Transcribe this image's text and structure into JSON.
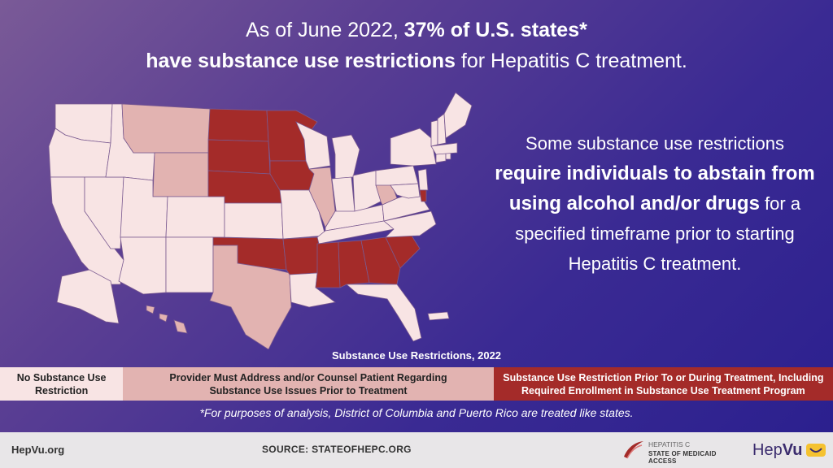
{
  "headline": {
    "line1_pre": "As of June 2022,",
    "line1_bold": "37% of U.S. states*",
    "line2_bold": "have substance use restrictions",
    "line2_post": "for Hepatitis C treatment."
  },
  "side_text": {
    "line1": "Some substance use restrictions",
    "bold": "require individuals to abstain from using alcohol and/or drugs",
    "post": "for a specified timeframe prior to starting Hepatitis C treatment."
  },
  "legend": {
    "title": "Substance Use Restrictions, 2022",
    "items": [
      {
        "label": "No Substance Use Restriction",
        "color": "#f8e4e4"
      },
      {
        "label": "Provider Must Address and/or Counsel Patient Regarding Substance Use Issues Prior to Treatment",
        "color": "#e2b3b1"
      },
      {
        "label": "Substance Use Restriction Prior To or During Treatment, Including Required Enrollment in Substance Use Treatment Program",
        "color": "#a42b29"
      }
    ]
  },
  "footnote": "*For purposes of analysis, District of Columbia and Puerto Rico are treated like states.",
  "footer": {
    "left": "HepVu.org",
    "source": "SOURCE: STATEOFHEPC.ORG",
    "logo1_line1": "HEPATITIS C",
    "logo1_line2": "STATE OF MEDICAID ACCESS",
    "logo2_a": "Hep",
    "logo2_b": "Vu"
  },
  "map": {
    "states": [
      {
        "name": "WA",
        "cat": 0
      },
      {
        "name": "OR",
        "cat": 0
      },
      {
        "name": "CA",
        "cat": 0
      },
      {
        "name": "NV",
        "cat": 0
      },
      {
        "name": "ID",
        "cat": 0
      },
      {
        "name": "MT",
        "cat": 1
      },
      {
        "name": "WY",
        "cat": 1
      },
      {
        "name": "UT",
        "cat": 0
      },
      {
        "name": "AZ",
        "cat": 0
      },
      {
        "name": "CO",
        "cat": 0
      },
      {
        "name": "NM",
        "cat": 0
      },
      {
        "name": "ND",
        "cat": 2
      },
      {
        "name": "SD",
        "cat": 2
      },
      {
        "name": "NE",
        "cat": 2
      },
      {
        "name": "KS",
        "cat": 0
      },
      {
        "name": "OK",
        "cat": 2
      },
      {
        "name": "TX",
        "cat": 1
      },
      {
        "name": "MN",
        "cat": 2
      },
      {
        "name": "IA",
        "cat": 2
      },
      {
        "name": "MO",
        "cat": 0
      },
      {
        "name": "AR",
        "cat": 2
      },
      {
        "name": "LA",
        "cat": 0
      },
      {
        "name": "WI",
        "cat": 0
      },
      {
        "name": "IL",
        "cat": 1
      },
      {
        "name": "MI",
        "cat": 0
      },
      {
        "name": "IN",
        "cat": 0
      },
      {
        "name": "OH",
        "cat": 0
      },
      {
        "name": "KY",
        "cat": 0
      },
      {
        "name": "TN",
        "cat": 0
      },
      {
        "name": "MS",
        "cat": 2
      },
      {
        "name": "AL",
        "cat": 2
      },
      {
        "name": "GA",
        "cat": 2
      },
      {
        "name": "FL",
        "cat": 0
      },
      {
        "name": "SC",
        "cat": 2
      },
      {
        "name": "NC",
        "cat": 0
      },
      {
        "name": "VA",
        "cat": 0
      },
      {
        "name": "WV",
        "cat": 1
      },
      {
        "name": "PA",
        "cat": 0
      },
      {
        "name": "NY",
        "cat": 0
      },
      {
        "name": "NJ",
        "cat": 0
      },
      {
        "name": "DE",
        "cat": 2
      },
      {
        "name": "MD",
        "cat": 0
      },
      {
        "name": "CT",
        "cat": 0
      },
      {
        "name": "RI",
        "cat": 0
      },
      {
        "name": "MA",
        "cat": 0
      },
      {
        "name": "VT",
        "cat": 0
      },
      {
        "name": "NH",
        "cat": 0
      },
      {
        "name": "ME",
        "cat": 0
      },
      {
        "name": "AK",
        "cat": 0
      },
      {
        "name": "HI",
        "cat": 1
      },
      {
        "name": "PR",
        "cat": 0
      }
    ]
  }
}
